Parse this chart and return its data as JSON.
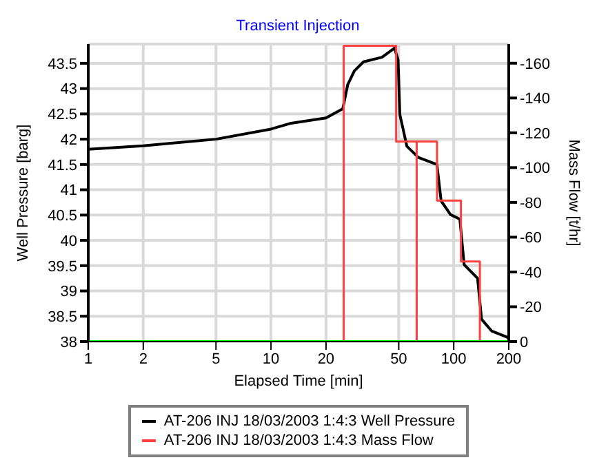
{
  "chart_data": {
    "type": "line",
    "title": "Transient Injection",
    "xlabel": "Elapsed Time [min]",
    "ylabel": "Well Pressure [barg]",
    "y2label": "Mass Flow [t/hr]",
    "log": "x",
    "xlim": [
      1,
      200
    ],
    "xticks": [
      1,
      2,
      5,
      10,
      20,
      50,
      100,
      200
    ],
    "ylim": [
      38,
      43.88
    ],
    "yticks": [
      38,
      38.5,
      39,
      39.5,
      40,
      40.5,
      41,
      41.5,
      42,
      42.5,
      43,
      43.5
    ],
    "y2lim": [
      0,
      -171
    ],
    "y2ticks": [
      0,
      -20,
      -40,
      -60,
      -80,
      -100,
      -120,
      -140,
      -160
    ],
    "grid": true,
    "legend": "bottom",
    "marker": "none",
    "line_style": "solid",
    "series": [
      {
        "name": "AT-206 INJ 18/03/2003 1:4:3 Well Pressure",
        "color": "#000000",
        "x": [
          1,
          2,
          5,
          10,
          12.7,
          20,
          24.7,
          26.3,
          28.6,
          32.1,
          40.5,
          47.4,
          49.6,
          50.7,
          55.4,
          64,
          80.9,
          85.3,
          96,
          108,
          114,
          135,
          142,
          161,
          198
        ],
        "values": [
          41.8,
          41.87,
          42.0,
          42.2,
          42.31,
          42.42,
          42.6,
          43.08,
          43.35,
          43.53,
          43.62,
          43.8,
          43.57,
          42.49,
          41.86,
          41.64,
          41.5,
          40.78,
          40.51,
          40.42,
          39.52,
          39.25,
          38.44,
          38.21,
          38.08
        ]
      },
      {
        "name": "AT-206 INJ 18/03/2003 1:4:3 Mass Flow",
        "type": "step",
        "axis": "y2",
        "color": "#ff4040",
        "x": [
          1,
          25,
          48.4,
          62.7,
          62.7,
          62.7,
          81,
          109.5,
          139,
          200
        ],
        "values": [
          0,
          -170,
          -115,
          -115,
          0,
          -115,
          -81,
          -46,
          0,
          0
        ]
      },
      {
        "type": "line",
        "axis": "y2",
        "color": "#00ff00",
        "x": [
          1,
          200
        ],
        "values": [
          0,
          0
        ]
      }
    ]
  }
}
